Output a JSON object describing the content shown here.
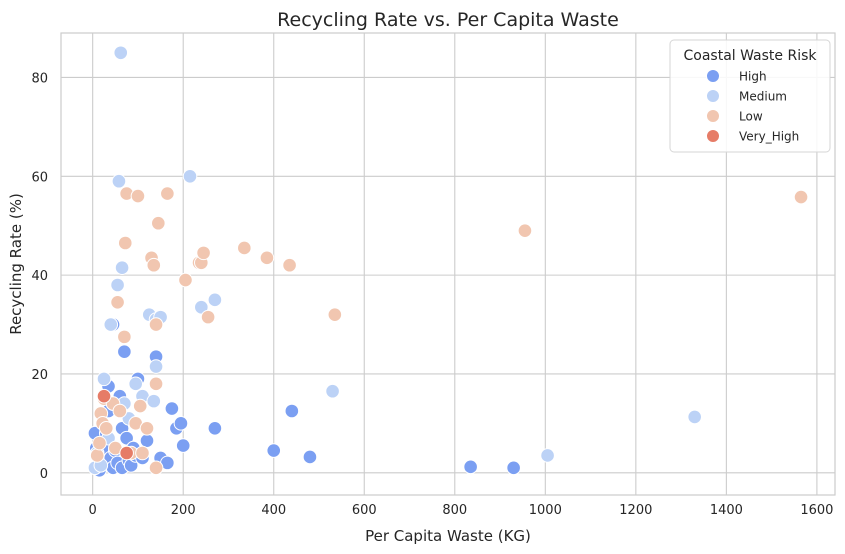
{
  "chart_data": {
    "type": "scatter",
    "title": "Recycling Rate vs. Per Capita Waste",
    "xlabel": "Per Capita Waste (KG)",
    "ylabel": "Recycling Rate (%)",
    "xlim": [
      -70,
      1640
    ],
    "ylim": [
      -4.5,
      89
    ],
    "xticks": [
      0,
      200,
      400,
      600,
      800,
      1000,
      1200,
      1400,
      1600
    ],
    "yticks": [
      0,
      20,
      40,
      60,
      80
    ],
    "xtick_labels": [
      "0",
      "200",
      "400",
      "600",
      "800",
      "1000",
      "1200",
      "1400",
      "1600"
    ],
    "ytick_labels": [
      "0",
      "20",
      "40",
      "60",
      "80"
    ],
    "grid": true,
    "legend": {
      "title": "Coastal Waste Risk",
      "placement": "top-right"
    },
    "series": [
      {
        "name": "High",
        "color": "#7b9ff2",
        "points": [
          [
            5,
            8
          ],
          [
            8,
            5
          ],
          [
            12,
            3
          ],
          [
            18,
            1
          ],
          [
            15,
            0.5
          ],
          [
            20,
            2
          ],
          [
            25,
            5
          ],
          [
            30,
            8
          ],
          [
            35,
            12.5
          ],
          [
            35,
            17.5
          ],
          [
            40,
            3
          ],
          [
            45,
            1
          ],
          [
            45,
            30
          ],
          [
            50,
            4.5
          ],
          [
            55,
            2
          ],
          [
            60,
            15.5
          ],
          [
            65,
            9
          ],
          [
            65,
            1
          ],
          [
            70,
            24.5
          ],
          [
            75,
            7
          ],
          [
            80,
            2.5
          ],
          [
            85,
            1.5
          ],
          [
            90,
            5
          ],
          [
            95,
            3.5
          ],
          [
            100,
            19
          ],
          [
            110,
            3
          ],
          [
            120,
            6.5
          ],
          [
            140,
            23.5
          ],
          [
            150,
            3
          ],
          [
            165,
            2
          ],
          [
            175,
            13
          ],
          [
            185,
            9
          ],
          [
            195,
            10
          ],
          [
            200,
            5.5
          ],
          [
            270,
            9
          ],
          [
            400,
            4.5
          ],
          [
            480,
            3.2
          ],
          [
            440,
            12.5
          ],
          [
            835,
            1.2
          ],
          [
            930,
            1
          ]
        ]
      },
      {
        "name": "Medium",
        "color": "#bcd2f6",
        "points": [
          [
            5,
            1
          ],
          [
            10,
            4
          ],
          [
            18,
            1.5
          ],
          [
            25,
            19
          ],
          [
            35,
            7
          ],
          [
            40,
            30
          ],
          [
            45,
            14
          ],
          [
            55,
            38
          ],
          [
            58,
            59
          ],
          [
            62,
            85
          ],
          [
            65,
            41.5
          ],
          [
            70,
            14
          ],
          [
            80,
            11
          ],
          [
            95,
            18
          ],
          [
            110,
            15.5
          ],
          [
            125,
            32
          ],
          [
            135,
            14.5
          ],
          [
            140,
            31
          ],
          [
            140,
            21.5
          ],
          [
            150,
            31.5
          ],
          [
            215,
            60
          ],
          [
            240,
            33.5
          ],
          [
            270,
            35
          ],
          [
            530,
            16.5
          ],
          [
            1005,
            3.5
          ],
          [
            1330,
            11.3
          ]
        ]
      },
      {
        "name": "Low",
        "color": "#f1c6b0",
        "points": [
          [
            10,
            3.5
          ],
          [
            15,
            6
          ],
          [
            18,
            12
          ],
          [
            22,
            10
          ],
          [
            25,
            15
          ],
          [
            30,
            9
          ],
          [
            45,
            14
          ],
          [
            50,
            5
          ],
          [
            55,
            34.5
          ],
          [
            60,
            12.5
          ],
          [
            70,
            27.5
          ],
          [
            72,
            46.5
          ],
          [
            75,
            56.5
          ],
          [
            85,
            4
          ],
          [
            95,
            10
          ],
          [
            100,
            56
          ],
          [
            105,
            13.5
          ],
          [
            110,
            4
          ],
          [
            120,
            9
          ],
          [
            130,
            43.5
          ],
          [
            135,
            42
          ],
          [
            140,
            18
          ],
          [
            140,
            30
          ],
          [
            140,
            1
          ],
          [
            145,
            50.5
          ],
          [
            165,
            56.5
          ],
          [
            205,
            39
          ],
          [
            235,
            42.5
          ],
          [
            240,
            42.5
          ],
          [
            245,
            44.5
          ],
          [
            255,
            31.5
          ],
          [
            335,
            45.5
          ],
          [
            385,
            43.5
          ],
          [
            435,
            42
          ],
          [
            535,
            32
          ],
          [
            955,
            49
          ],
          [
            1565,
            55.8
          ]
        ]
      },
      {
        "name": "Very_High",
        "color": "#e67c67",
        "points": [
          [
            25,
            15.5
          ],
          [
            75,
            4
          ]
        ]
      }
    ]
  }
}
